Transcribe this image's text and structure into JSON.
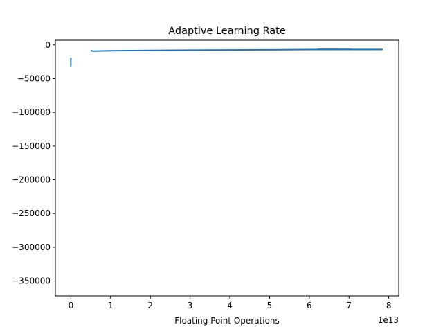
{
  "chart_data": {
    "type": "line",
    "title": "Adaptive Learning Rate",
    "xlabel": "Floating Point Operations",
    "ylabel": "",
    "x_offset_label": "1e13",
    "x_scale": 10000000000000.0,
    "xlim": [
      -0.39,
      8.25
    ],
    "ylim": [
      -372000,
      7000
    ],
    "xticks": [
      0,
      1,
      2,
      3,
      4,
      5,
      6,
      7,
      8
    ],
    "xtick_labels": [
      "0",
      "1",
      "2",
      "3",
      "4",
      "5",
      "6",
      "7",
      "8"
    ],
    "yticks": [
      0,
      -50000,
      -100000,
      -150000,
      -200000,
      -250000,
      -300000,
      -350000
    ],
    "ytick_labels": [
      "0",
      "−50000",
      "−100000",
      "−150000",
      "−200000",
      "−250000",
      "−300000",
      "−350000"
    ],
    "color": "#1f77b4",
    "grid": false,
    "series": [
      {
        "segments": [
          {
            "x": [
              0.0,
              0.0,
              0.0,
              0.0,
              0.0
            ],
            "y": [
              -19000,
              -24000,
              -28000,
              -31000,
              -25000
            ]
          },
          {
            "x": [
              0.5,
              0.55,
              0.6,
              1.0,
              2.0,
              3.0,
              4.0,
              5.0,
              6.0,
              6.5,
              7.0,
              7.5,
              7.85
            ],
            "y": [
              -8500,
              -9000,
              -9200,
              -8600,
              -8100,
              -7800,
              -7500,
              -7200,
              -6900,
              -6800,
              -6750,
              -6700,
              -6700
            ]
          },
          {
            "x": [
              6.2,
              7.85
            ],
            "y": [
              -6500,
              -6600
            ]
          }
        ]
      }
    ]
  }
}
